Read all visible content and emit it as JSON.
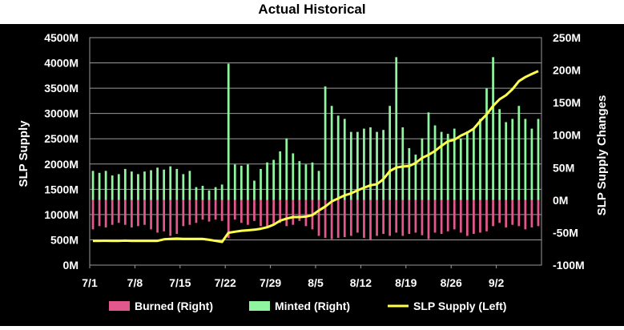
{
  "chart_data": {
    "type": "bar+line",
    "title": "Actual Historical",
    "ylabel_left": "SLP Supply",
    "ylabel_right": "SLP Supply Changes",
    "ylim_left": [
      0,
      4500
    ],
    "ylim_right": [
      -100,
      250
    ],
    "left_ticks": [
      "0M",
      "500M",
      "1000M",
      "1500M",
      "2000M",
      "2500M",
      "3000M",
      "3500M",
      "4000M",
      "4500M"
    ],
    "right_ticks": [
      "-100M",
      "-50M",
      "0M",
      "50M",
      "100M",
      "150M",
      "200M",
      "250M"
    ],
    "x_tick_labels": [
      "7/1",
      "7/8",
      "7/15",
      "7/22",
      "7/29",
      "8/5",
      "8/12",
      "8/19",
      "8/26",
      "9/2"
    ],
    "x_tick_day_index": [
      0,
      7,
      14,
      21,
      28,
      35,
      42,
      49,
      56,
      63
    ],
    "num_days": 70,
    "legend": [
      {
        "label": "Burned (Right)",
        "key": "burned"
      },
      {
        "label": "Minted (Right)",
        "key": "minted"
      },
      {
        "label": "SLP Supply (Left)",
        "key": "supply"
      }
    ],
    "series": [
      {
        "name": "Minted (Right)",
        "key": "minted",
        "axis": "right",
        "values": [
          45,
          42,
          45,
          38,
          40,
          48,
          44,
          40,
          44,
          46,
          50,
          47,
          52,
          48,
          40,
          45,
          20,
          22,
          15,
          20,
          24,
          210,
          55,
          53,
          55,
          30,
          48,
          58,
          62,
          75,
          95,
          72,
          60,
          55,
          58,
          45,
          175,
          145,
          130,
          125,
          105,
          105,
          110,
          112,
          105,
          108,
          145,
          220,
          112,
          80,
          70,
          95,
          135,
          115,
          105,
          102,
          110,
          95,
          106,
          110,
          125,
          172,
          220,
          140,
          120,
          125,
          145,
          125,
          110,
          125
        ]
      },
      {
        "name": "Burned (Right)",
        "key": "burned",
        "axis": "right",
        "values": [
          -45,
          -40,
          -42,
          -38,
          -35,
          -38,
          -42,
          -40,
          -38,
          -45,
          -50,
          -48,
          -55,
          -52,
          -40,
          -38,
          -35,
          -30,
          -33,
          -30,
          -32,
          -58,
          -30,
          -35,
          -38,
          -32,
          -40,
          -42,
          -38,
          -35,
          -40,
          -38,
          -32,
          -40,
          -45,
          -55,
          -58,
          -60,
          -58,
          -57,
          -55,
          -50,
          -58,
          -62,
          -55,
          -52,
          -55,
          -50,
          -55,
          -52,
          -50,
          -54,
          -60,
          -50,
          -52,
          -48,
          -45,
          -50,
          -55,
          -52,
          -50,
          -48,
          -40,
          -35,
          -42,
          -38,
          -40,
          -45,
          -42,
          -40
        ]
      },
      {
        "name": "SLP Supply (Left)",
        "key": "supply",
        "axis": "left",
        "values": [
          480,
          480,
          482,
          480,
          478,
          485,
          480,
          478,
          480,
          478,
          480,
          510,
          520,
          525,
          520,
          520,
          520,
          518,
          500,
          480,
          460,
          640,
          660,
          680,
          690,
          700,
          720,
          750,
          800,
          880,
          920,
          950,
          950,
          960,
          990,
          1080,
          1160,
          1260,
          1320,
          1380,
          1420,
          1480,
          1530,
          1580,
          1600,
          1700,
          1860,
          1930,
          1950,
          1960,
          2020,
          2120,
          2180,
          2260,
          2360,
          2450,
          2480,
          2560,
          2620,
          2700,
          2850,
          2980,
          3150,
          3280,
          3360,
          3480,
          3640,
          3720,
          3780,
          3840
        ]
      }
    ]
  },
  "colors": {
    "background": "#000000",
    "grid": "#9a9a9a",
    "minted": "#8ff59f",
    "burned": "#e2588c",
    "supply": "#ffff4d",
    "tick_text": "#ffffff"
  }
}
